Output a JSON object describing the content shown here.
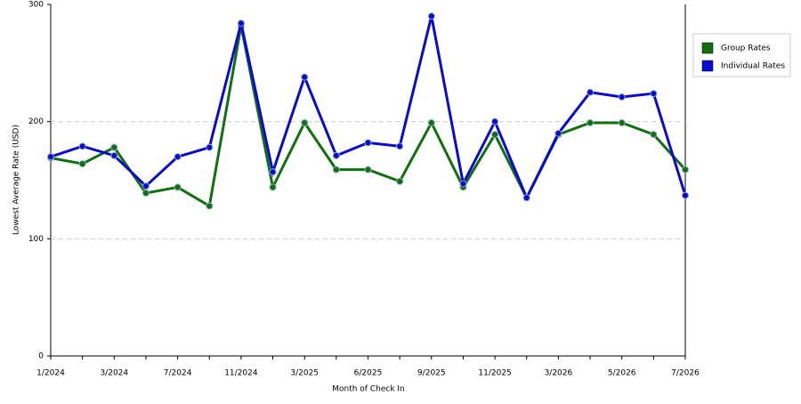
{
  "chart_data": {
    "type": "line",
    "x_label": "Month of Check In",
    "y_label": "Lowest Average Rate (USD)",
    "categories": [
      "1/2024",
      null,
      "3/2024",
      null,
      "7/2024",
      null,
      "11/2024",
      null,
      "3/2025",
      null,
      "6/2025",
      null,
      "9/2025",
      null,
      "11/2025",
      null,
      "3/2026",
      null,
      "5/2026",
      null,
      "7/2026"
    ],
    "series": [
      {
        "name": "Group Rates",
        "color": "#107010",
        "values": [
          169,
          164,
          178,
          139,
          144,
          128,
          282,
          144,
          199,
          159,
          159,
          149,
          199,
          144,
          189,
          135,
          189,
          199,
          199,
          189,
          159
        ]
      },
      {
        "name": "Individual Rates",
        "color": "#0a0ad0",
        "values": [
          170,
          179,
          171,
          145,
          170,
          178,
          284,
          157,
          238,
          171,
          182,
          179,
          290,
          147,
          200,
          135,
          190,
          225,
          221,
          224,
          137
        ]
      }
    ],
    "ylim": [
      0,
      300
    ],
    "yticks": [
      0,
      100,
      200,
      300
    ],
    "grid": true,
    "legend": "right"
  }
}
